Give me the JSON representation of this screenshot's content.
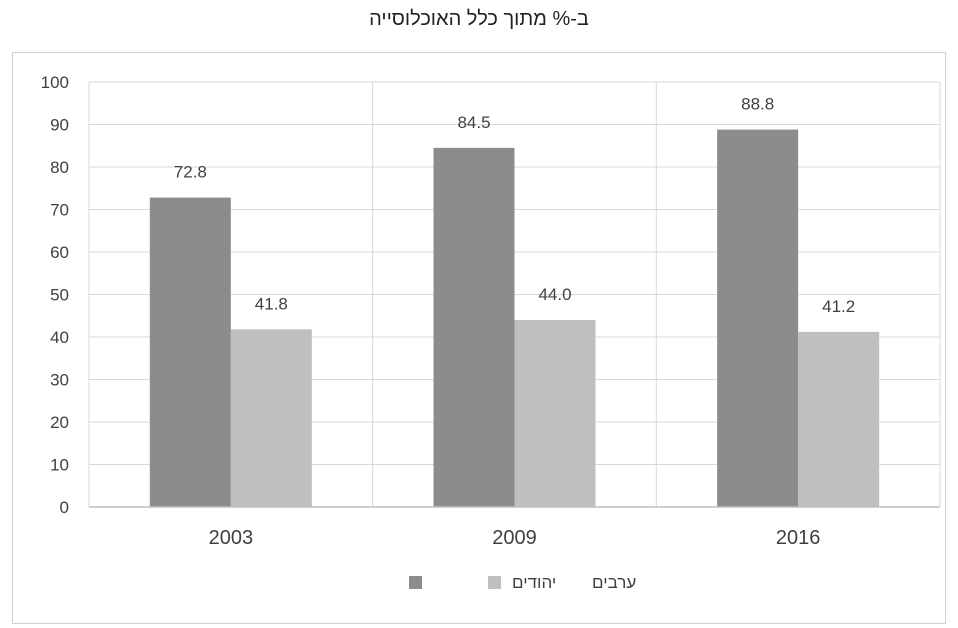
{
  "chart_data": {
    "type": "bar",
    "title": "ב-% מתוך כלל האוכלוסייה",
    "categories": [
      "2003",
      "2009",
      "2016"
    ],
    "series": [
      {
        "name": "יהודים",
        "values": [
          72.8,
          84.5,
          88.8
        ],
        "labels": [
          "72.8",
          "84.5",
          "88.8"
        ],
        "color": "#8c8c8c"
      },
      {
        "name": "ערבים",
        "values": [
          41.8,
          44.0,
          41.2
        ],
        "labels": [
          "41.8",
          "44.0",
          "41.2"
        ],
        "color": "#bfbfbf"
      }
    ],
    "ylim": [
      0,
      100
    ],
    "yticks": [
      "0",
      "10",
      "20",
      "30",
      "40",
      "50",
      "60",
      "70",
      "80",
      "90",
      "100"
    ],
    "grid": true,
    "legend_position": "bottom",
    "colors": {
      "axis": "#bfbfbf",
      "grid": "#d9d9d9",
      "text": "#404040"
    }
  }
}
